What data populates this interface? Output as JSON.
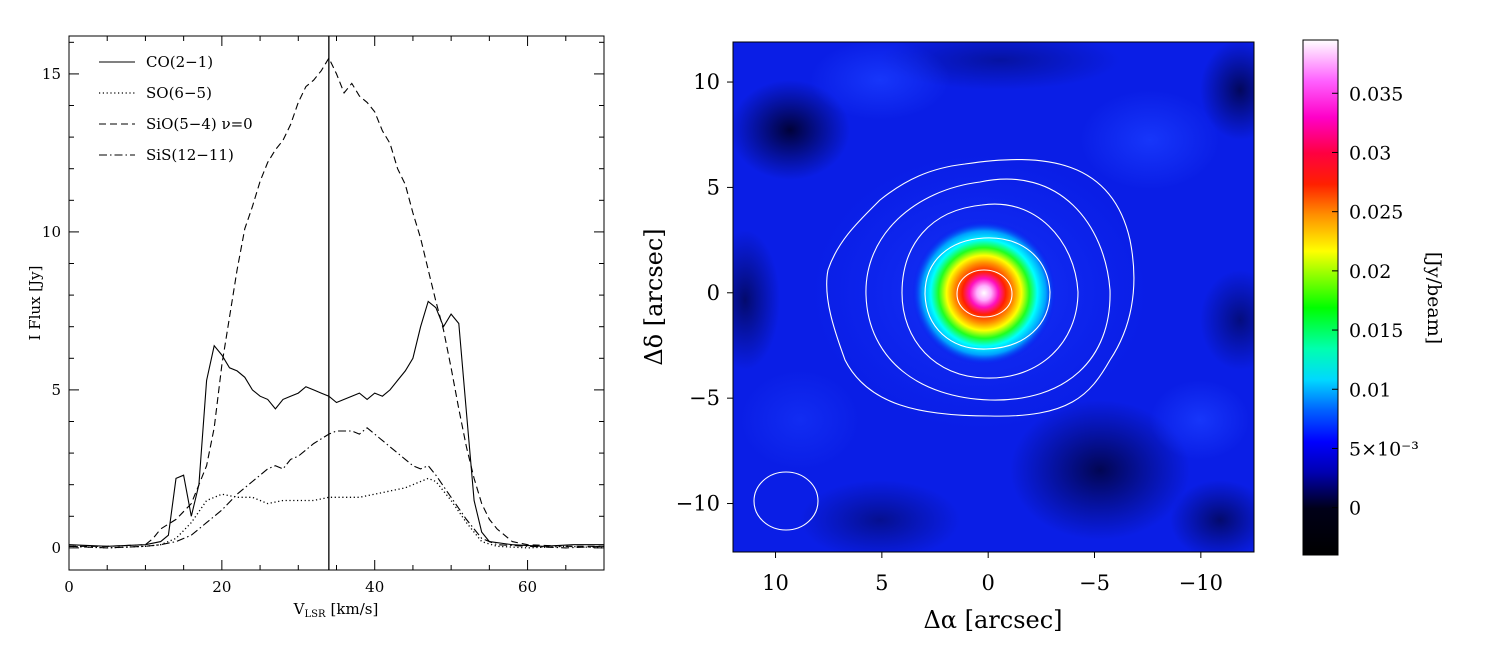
{
  "chart_data": [
    {
      "type": "line",
      "xlabel": "V_LSR [km/s]",
      "xlabel_main": "V",
      "xlabel_sub": "LSR",
      "xlabel_unit": "[km/s]",
      "ylabel": "I Flux [Jy]",
      "xlim": [
        0,
        70
      ],
      "ylim": [
        -0.7,
        16.2
      ],
      "xticks": [
        0,
        20,
        40,
        60
      ],
      "yticks": [
        0,
        5,
        10,
        15
      ],
      "xtick_labels": [
        "0",
        "20",
        "40",
        "60"
      ],
      "ytick_labels": [
        "0",
        "5",
        "10",
        "15"
      ],
      "legend_position": "top-left",
      "vline_x": 34,
      "series": [
        {
          "name": "CO(2−1)",
          "style": "solid",
          "x": [
            0,
            5,
            10,
            12,
            13,
            14,
            15,
            16,
            17,
            18,
            19,
            20,
            21,
            22,
            23,
            24,
            25,
            26,
            27,
            28,
            29,
            30,
            31,
            32,
            33,
            34,
            35,
            36,
            37,
            38,
            39,
            40,
            41,
            42,
            43,
            44,
            45,
            46,
            47,
            48,
            49,
            50,
            51,
            52,
            53,
            54,
            55,
            58,
            62,
            66,
            70
          ],
          "values": [
            0.1,
            0.05,
            0.1,
            0.2,
            0.4,
            2.2,
            2.3,
            1.0,
            2.0,
            5.3,
            6.4,
            6.1,
            5.7,
            5.6,
            5.4,
            5.0,
            4.8,
            4.7,
            4.4,
            4.7,
            4.8,
            4.9,
            5.1,
            5.0,
            4.9,
            4.8,
            4.6,
            4.7,
            4.8,
            4.9,
            4.7,
            4.9,
            4.8,
            5.0,
            5.3,
            5.6,
            6.0,
            7.0,
            7.8,
            7.6,
            7.0,
            7.4,
            7.1,
            4.3,
            1.5,
            0.5,
            0.2,
            0.1,
            0.05,
            0.1,
            0.1
          ]
        },
        {
          "name": "SO(6−5)",
          "style": "dotted",
          "x": [
            0,
            5,
            10,
            12,
            14,
            16,
            18,
            20,
            22,
            24,
            26,
            28,
            30,
            32,
            34,
            36,
            38,
            40,
            42,
            44,
            46,
            47,
            48,
            50,
            52,
            54,
            56,
            60,
            65,
            70
          ],
          "values": [
            0.05,
            0.0,
            0.05,
            0.1,
            0.3,
            0.8,
            1.5,
            1.7,
            1.6,
            1.6,
            1.4,
            1.5,
            1.5,
            1.5,
            1.6,
            1.6,
            1.6,
            1.7,
            1.8,
            1.9,
            2.1,
            2.2,
            2.1,
            1.5,
            0.8,
            0.2,
            0.05,
            0.0,
            0.05,
            0.0
          ]
        },
        {
          "name": "SiO(5−4) ν=0",
          "style": "dashed",
          "x": [
            0,
            5,
            10,
            11,
            12,
            14,
            16,
            18,
            19,
            20,
            21,
            22,
            23,
            24,
            25,
            26,
            27,
            28,
            29,
            30,
            31,
            32,
            33,
            34,
            35,
            36,
            37,
            38,
            39,
            40,
            41,
            42,
            43,
            44,
            45,
            46,
            47,
            48,
            49,
            50,
            51,
            52,
            53,
            54,
            55,
            56,
            57,
            58,
            60,
            65,
            70
          ],
          "values": [
            0.05,
            0.05,
            0.1,
            0.3,
            0.6,
            0.9,
            1.4,
            2.6,
            3.8,
            5.8,
            7.3,
            8.8,
            10.1,
            10.8,
            11.6,
            12.2,
            12.6,
            12.9,
            13.4,
            14.1,
            14.6,
            14.8,
            15.1,
            15.5,
            15.0,
            14.4,
            14.7,
            14.3,
            14.1,
            13.8,
            13.2,
            12.8,
            12.0,
            11.5,
            10.6,
            9.8,
            8.8,
            7.8,
            6.9,
            5.7,
            4.4,
            3.2,
            2.2,
            1.4,
            0.9,
            0.6,
            0.4,
            0.2,
            0.1,
            0.05,
            0.05
          ]
        },
        {
          "name": "SiS(12−11)",
          "style": "dashdot",
          "x": [
            0,
            5,
            10,
            12,
            14,
            16,
            18,
            20,
            22,
            24,
            25,
            26,
            27,
            28,
            29,
            30,
            32,
            34,
            35,
            36,
            37,
            38,
            39,
            40,
            42,
            44,
            45,
            46,
            47,
            48,
            50,
            52,
            54,
            56,
            60,
            65,
            70
          ],
          "values": [
            0.05,
            0.0,
            0.05,
            0.1,
            0.2,
            0.4,
            0.8,
            1.2,
            1.7,
            2.1,
            2.3,
            2.5,
            2.6,
            2.5,
            2.8,
            2.9,
            3.3,
            3.6,
            3.7,
            3.7,
            3.7,
            3.6,
            3.8,
            3.6,
            3.2,
            2.8,
            2.6,
            2.5,
            2.6,
            2.3,
            1.6,
            0.9,
            0.3,
            0.1,
            0.05,
            0.0,
            0.05
          ]
        }
      ]
    },
    {
      "type": "heatmap",
      "xlabel": "Δα [arcsec]",
      "ylabel": "Δδ [arcsec]",
      "xlim": [
        12,
        -12.5
      ],
      "ylim": [
        -12.3,
        11.9
      ],
      "xticks": [
        10,
        5,
        0,
        -5,
        -10
      ],
      "yticks": [
        10,
        5,
        0,
        -5,
        -10
      ],
      "xtick_labels": [
        "10",
        "5",
        "0",
        "−5",
        "−10"
      ],
      "ytick_labels": [
        "10",
        "5",
        "0",
        "−5",
        "−10"
      ],
      "peak_position": [
        0,
        0
      ],
      "beam_center": [
        9.2,
        -9.8
      ],
      "contour_radii_arcsec": [
        1.3,
        2.7,
        3.9,
        4.7,
        5.4
      ],
      "colormap": [
        "#000000",
        "#0000ff",
        "#00ffff",
        "#00ff00",
        "#ffff00",
        "#ff8800",
        "#ff0000",
        "#ff00ff",
        "#ffffff"
      ],
      "colorbar": {
        "label": "[Jy/beam]",
        "range": [
          -0.004,
          0.0395
        ],
        "ticks": [
          0,
          0.005,
          0.01,
          0.015,
          0.02,
          0.025,
          0.03,
          0.035
        ],
        "tick_labels": [
          "0",
          "5×10⁻³",
          "0.01",
          "0.015",
          "0.02",
          "0.025",
          "0.03",
          "0.035"
        ]
      }
    }
  ]
}
